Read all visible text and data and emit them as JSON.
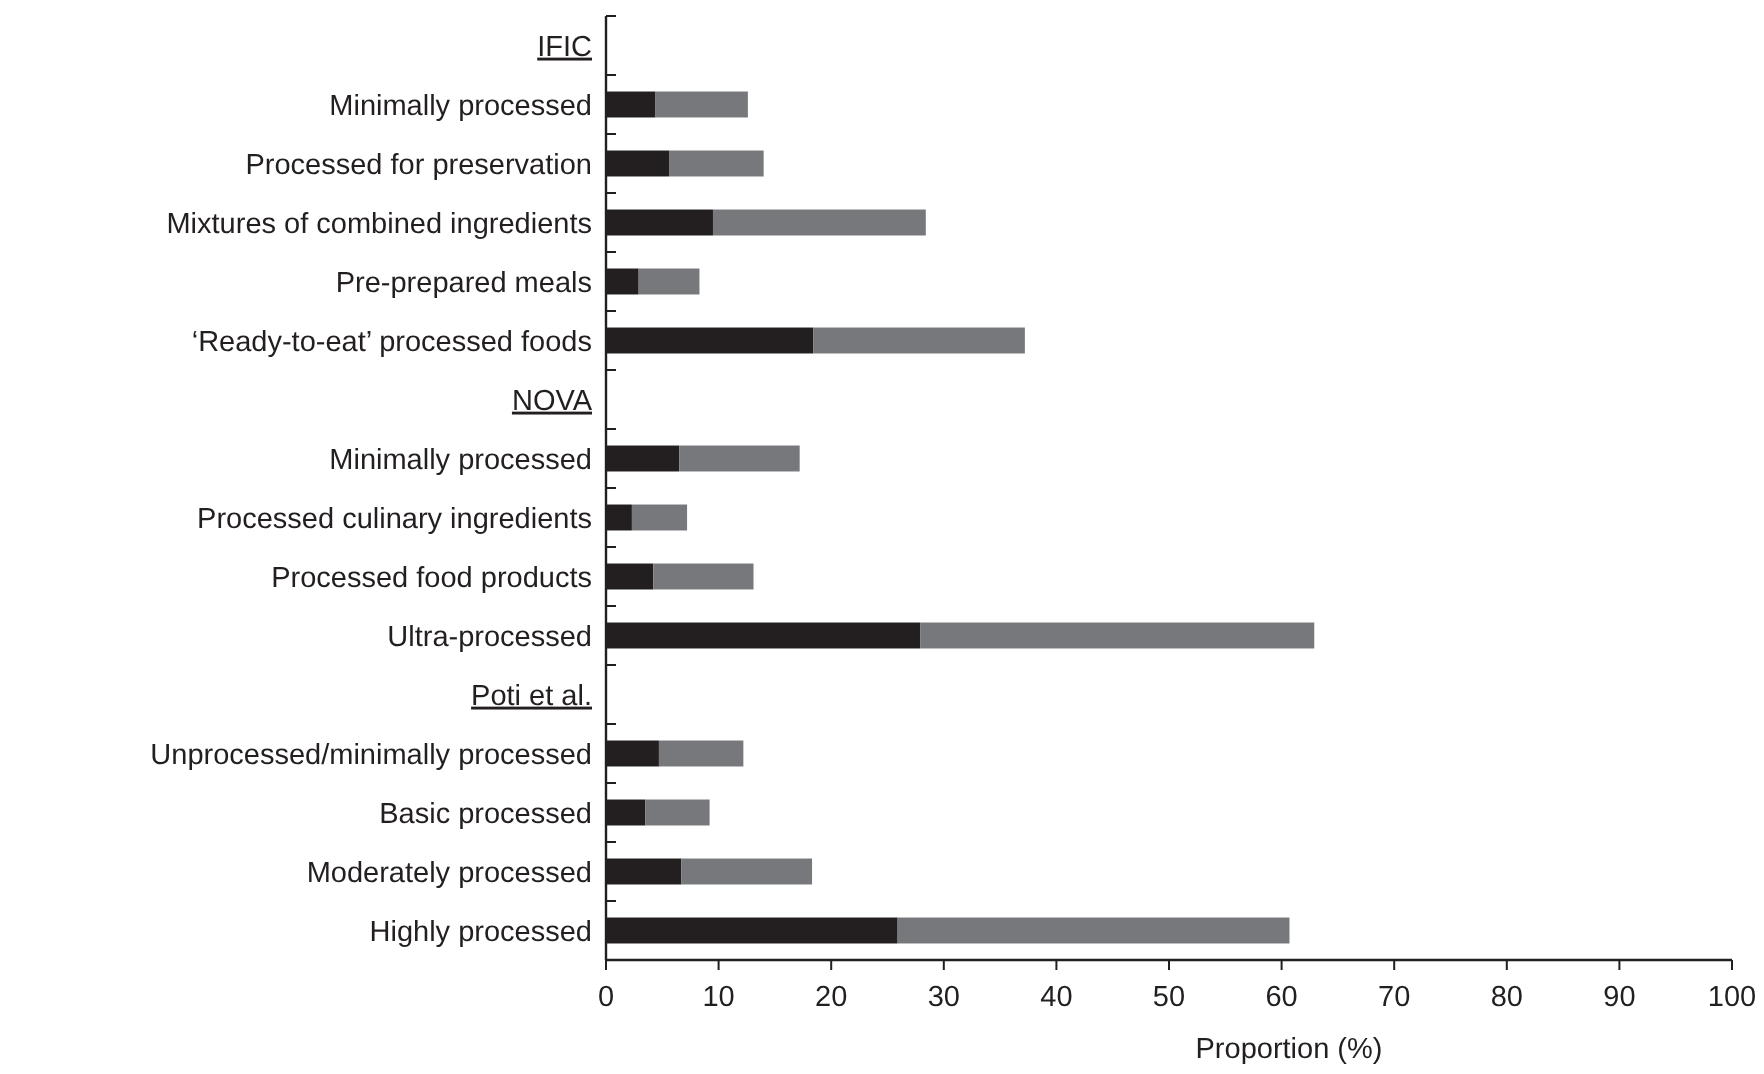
{
  "chart_data": {
    "type": "bar",
    "orientation": "horizontal",
    "stacked": true,
    "xlabel": "Proportion (%)",
    "categories": [
      "IFIC",
      "Minimally processed",
      "Processed for preservation",
      "Mixtures of combined ingredients",
      "Pre-prepared meals",
      "‘Ready-to-eat’ processed foods",
      "NOVA",
      "Minimally processed",
      "Processed culinary ingredients",
      "Processed food products",
      "Ultra-processed",
      "Poti et al.",
      "Unprocessed/minimally processed",
      "Basic processed",
      "Moderately processed",
      "Highly processed"
    ],
    "series": [
      {
        "color": "#231f20",
        "values": [
          null,
          4.4,
          5.6,
          9.5,
          2.9,
          18.4,
          null,
          6.5,
          2.3,
          4.2,
          27.9,
          null,
          4.7,
          3.5,
          6.7,
          25.9
        ]
      },
      {
        "color": "#77787b",
        "values": [
          null,
          8.2,
          8.4,
          18.9,
          5.4,
          18.8,
          null,
          10.7,
          4.9,
          8.9,
          35.0,
          null,
          7.5,
          5.7,
          11.6,
          34.8
        ]
      }
    ],
    "xlim": [
      0,
      100
    ],
    "xticks": [
      0,
      10,
      20,
      30,
      40,
      50,
      60,
      70,
      80,
      90,
      100
    ]
  }
}
